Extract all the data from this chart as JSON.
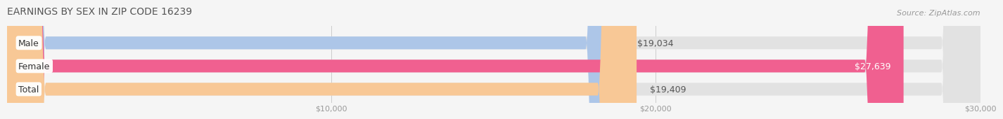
{
  "title": "EARNINGS BY SEX IN ZIP CODE 16239",
  "source": "Source: ZipAtlas.com",
  "categories": [
    "Male",
    "Female",
    "Total"
  ],
  "values": [
    19034,
    27639,
    19409
  ],
  "bar_colors": [
    "#adc6e8",
    "#f06090",
    "#f8c896"
  ],
  "label_colors": [
    "#555555",
    "#ffffff",
    "#555555"
  ],
  "background_color": "#f5f5f5",
  "bar_bg_color": "#e2e2e2",
  "xlim": [
    0,
    30000
  ],
  "xticks": [
    10000,
    20000,
    30000
  ],
  "xtick_labels": [
    "$10,000",
    "$20,000",
    "$30,000"
  ],
  "title_fontsize": 10,
  "label_fontsize": 9,
  "value_fontsize": 9,
  "source_fontsize": 8
}
